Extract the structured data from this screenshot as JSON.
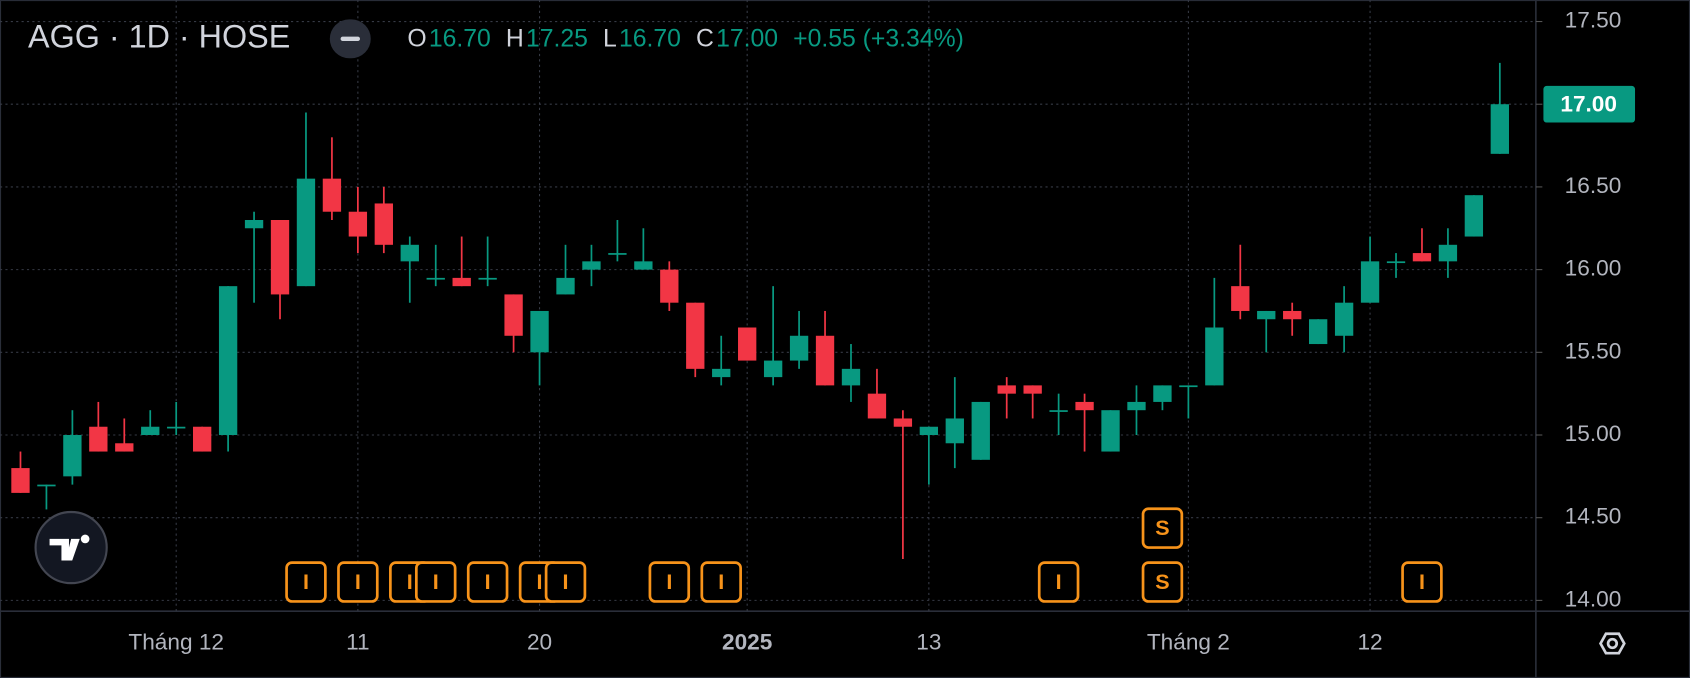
{
  "chart_data": {
    "type": "candlestick",
    "legend": {
      "symbol": "AGG · 1D · HOSE",
      "ohlc": [
        {
          "label": "O",
          "value": "16.70"
        },
        {
          "label": "H",
          "value": "17.25"
        },
        {
          "label": "L",
          "value": "16.70"
        },
        {
          "label": "C",
          "value": "17.00"
        }
      ],
      "change": "+0.55 (+3.34%)"
    },
    "categories": [
      null,
      null,
      null,
      null,
      null,
      null,
      "Tháng 12",
      null,
      null,
      null,
      null,
      null,
      null,
      "11",
      null,
      null,
      null,
      null,
      null,
      null,
      "20",
      null,
      null,
      null,
      null,
      null,
      null,
      null,
      "2025",
      null,
      null,
      null,
      null,
      null,
      null,
      "13",
      null,
      null,
      null,
      null,
      null,
      null,
      null,
      null,
      null,
      "Tháng 2",
      null,
      null,
      null,
      null,
      null,
      null,
      "12",
      null,
      null,
      null,
      null,
      null
    ],
    "series": [
      {
        "up_color": "#089981",
        "down_color": "#f23645",
        "open": [
          14.8,
          14.7,
          14.75,
          15.05,
          14.95,
          15.0,
          15.05,
          15.05,
          15.0,
          16.25,
          16.3,
          15.9,
          16.55,
          16.35,
          16.4,
          16.05,
          15.95,
          15.95,
          15.95,
          15.85,
          15.5,
          15.85,
          16.0,
          16.1,
          16.0,
          16.0,
          15.8,
          15.35,
          15.65,
          15.35,
          15.45,
          15.6,
          15.3,
          15.25,
          15.1,
          15.0,
          14.95,
          14.85,
          15.3,
          15.3,
          15.15,
          15.2,
          14.9,
          15.15,
          15.2,
          15.3,
          15.3,
          15.9,
          15.7,
          15.75,
          15.55,
          15.6,
          15.8,
          16.05,
          16.1,
          16.05,
          16.2,
          16.7
        ],
        "high": [
          14.9,
          14.7,
          15.15,
          15.2,
          15.1,
          15.15,
          15.2,
          15.05,
          15.9,
          16.35,
          16.3,
          16.95,
          16.8,
          16.5,
          16.5,
          16.2,
          16.15,
          16.2,
          16.2,
          15.85,
          15.75,
          16.15,
          16.15,
          16.3,
          16.25,
          16.05,
          15.8,
          15.6,
          15.65,
          15.9,
          15.75,
          15.75,
          15.55,
          15.4,
          15.15,
          15.05,
          15.35,
          15.2,
          15.35,
          15.3,
          15.25,
          15.25,
          15.15,
          15.3,
          15.3,
          15.3,
          15.95,
          16.15,
          15.75,
          15.8,
          15.7,
          15.9,
          16.2,
          16.1,
          16.25,
          16.25,
          16.45,
          17.25
        ],
        "low": [
          14.65,
          14.55,
          14.7,
          14.9,
          14.9,
          15.0,
          15.0,
          14.9,
          14.9,
          15.8,
          15.7,
          15.9,
          16.3,
          16.1,
          16.1,
          15.8,
          15.9,
          15.9,
          15.9,
          15.5,
          15.3,
          15.85,
          15.9,
          16.05,
          16.0,
          15.75,
          15.35,
          15.3,
          15.45,
          15.3,
          15.4,
          15.3,
          15.2,
          15.1,
          14.25,
          14.7,
          14.8,
          14.85,
          15.1,
          15.1,
          15.0,
          14.9,
          14.9,
          15.0,
          15.15,
          15.1,
          15.3,
          15.7,
          15.5,
          15.6,
          15.55,
          15.5,
          15.8,
          15.95,
          16.05,
          15.95,
          16.2,
          16.7
        ],
        "close": [
          14.65,
          14.7,
          15.0,
          14.9,
          14.9,
          15.05,
          15.05,
          14.9,
          15.9,
          16.3,
          15.85,
          16.55,
          16.35,
          16.2,
          16.15,
          16.15,
          15.95,
          15.9,
          15.95,
          15.6,
          15.75,
          15.95,
          16.05,
          16.1,
          16.05,
          15.8,
          15.4,
          15.4,
          15.45,
          15.45,
          15.6,
          15.3,
          15.4,
          15.1,
          15.05,
          15.05,
          15.1,
          15.2,
          15.25,
          15.25,
          15.15,
          15.15,
          15.15,
          15.2,
          15.3,
          15.3,
          15.65,
          15.75,
          15.75,
          15.7,
          15.7,
          15.8,
          16.05,
          16.05,
          16.05,
          16.15,
          16.45,
          17.0
        ]
      }
    ],
    "events": [
      {
        "label": "I",
        "index": 11
      },
      {
        "label": "I",
        "index": 13
      },
      {
        "label": "I",
        "index": 15
      },
      {
        "label": "I",
        "index": 16
      },
      {
        "label": "I",
        "index": 18
      },
      {
        "label": "I",
        "index": 20
      },
      {
        "label": "I",
        "index": 21
      },
      {
        "label": "I",
        "index": 25
      },
      {
        "label": "I",
        "index": 27
      },
      {
        "label": "I",
        "index": 40
      },
      {
        "label": "S",
        "index": 44
      },
      {
        "label": "S",
        "index": 44
      },
      {
        "label": "I",
        "index": 54
      }
    ],
    "last_price": {
      "value": 17.0,
      "label": "17.00"
    },
    "ylim": [
      13.935,
      17.63
    ],
    "yticks": [
      {
        "value": 14.0,
        "label": "14.00"
      },
      {
        "value": 14.5,
        "label": "14.50"
      },
      {
        "value": 15.0,
        "label": "15.00"
      },
      {
        "value": 15.5,
        "label": "15.50"
      },
      {
        "value": 16.0,
        "label": "16.00"
      },
      {
        "value": 16.5,
        "label": "16.50"
      },
      {
        "value": 17.0,
        "label": "17.00"
      },
      {
        "value": 17.5,
        "label": "17.50"
      }
    ],
    "grid": true
  }
}
